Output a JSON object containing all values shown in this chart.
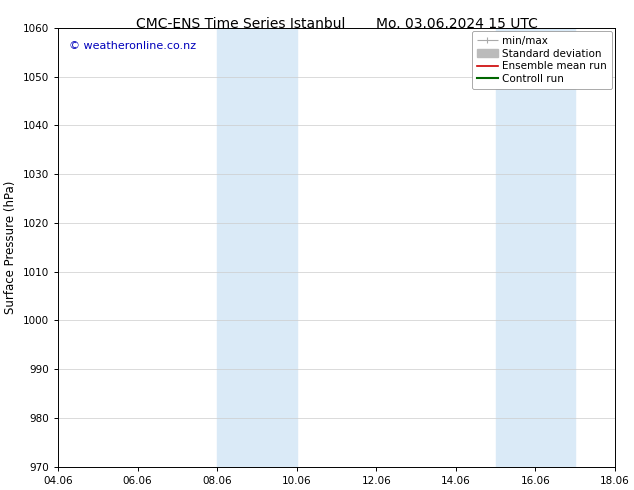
{
  "title_left": "CMC-ENS Time Series Istanbul",
  "title_right": "Mo. 03.06.2024 15 UTC",
  "ylabel": "Surface Pressure (hPa)",
  "ylim": [
    970,
    1060
  ],
  "yticks": [
    970,
    980,
    990,
    1000,
    1010,
    1020,
    1030,
    1040,
    1050,
    1060
  ],
  "xtick_labels": [
    "04.06",
    "06.06",
    "08.06",
    "10.06",
    "12.06",
    "14.06",
    "16.06",
    "18.06"
  ],
  "xtick_positions": [
    0,
    2,
    4,
    6,
    8,
    10,
    12,
    14
  ],
  "shaded_bands": [
    {
      "x_start": 4,
      "x_end": 6
    },
    {
      "x_start": 11,
      "x_end": 13
    }
  ],
  "shaded_color": "#daeaf7",
  "watermark_text": "© weatheronline.co.nz",
  "watermark_color": "#0000bb",
  "legend_items": [
    {
      "label": "min/max",
      "color": "#aaaaaa",
      "lw": 1.0
    },
    {
      "label": "Standard deviation",
      "color": "#bbbbbb",
      "lw": 5
    },
    {
      "label": "Ensemble mean run",
      "color": "#cc0000",
      "lw": 1.2
    },
    {
      "label": "Controll run",
      "color": "#006600",
      "lw": 1.5
    }
  ],
  "bg_color": "#ffffff",
  "grid_color": "#cccccc",
  "title_fontsize": 10,
  "tick_fontsize": 7.5,
  "ylabel_fontsize": 8.5,
  "legend_fontsize": 7.5,
  "watermark_fontsize": 8
}
